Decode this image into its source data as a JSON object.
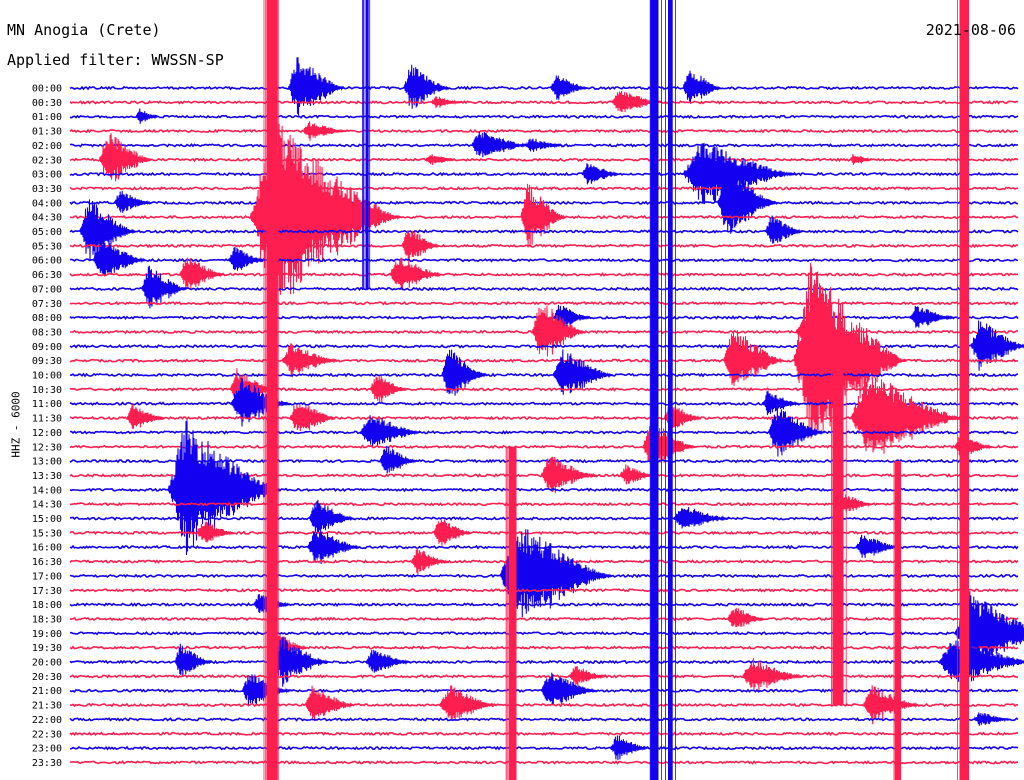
{
  "header": {
    "station": "MN Anogia (Crete)",
    "filter": "Applied filter: WWSSN-SP",
    "date": "2021-08-06"
  },
  "axis": {
    "component": "HHZ - 6000"
  },
  "colors": {
    "even_rows": "#1400f0",
    "odd_rows": "#ff1e50",
    "background": "#ffffff",
    "text": "#000000"
  },
  "chart_data": {
    "type": "line",
    "title": "MN Anogia (Crete)",
    "subtitle": "Applied filter: WWSSN-SP",
    "date": "2021-08-06",
    "ylabel": "HHZ - 6000",
    "x_unit": "minutes within each 30-minute row",
    "xlim": [
      0,
      30
    ],
    "row_labels": [
      "00:00",
      "00:30",
      "01:00",
      "01:30",
      "02:00",
      "02:30",
      "03:00",
      "03:30",
      "04:00",
      "04:30",
      "05:00",
      "05:30",
      "06:00",
      "06:30",
      "07:00",
      "07:30",
      "08:00",
      "08:30",
      "09:00",
      "09:30",
      "10:00",
      "10:30",
      "11:00",
      "11:30",
      "12:00",
      "12:30",
      "13:00",
      "13:30",
      "14:00",
      "14:30",
      "15:00",
      "15:30",
      "16:00",
      "16:30",
      "17:00",
      "17:30",
      "18:00",
      "18:30",
      "19:00",
      "19:30",
      "20:00",
      "20:30",
      "21:00",
      "21:30",
      "22:00",
      "22:30",
      "23:00",
      "23:30"
    ],
    "series_colors": [
      "#1400f0",
      "#ff1e50"
    ],
    "note_amp_units": "relative amplitude (1 = one row spacing)",
    "events": [
      {
        "row": 0,
        "minute": 7.2,
        "amp": 2.5,
        "dur": 1.5
      },
      {
        "row": 0,
        "minute": 10.8,
        "amp": 1.8,
        "dur": 1.2
      },
      {
        "row": 0,
        "minute": 15.4,
        "amp": 1.0,
        "dur": 1.0
      },
      {
        "row": 0,
        "minute": 19.6,
        "amp": 1.6,
        "dur": 1.0
      },
      {
        "row": 1,
        "minute": 17.4,
        "amp": 1.0,
        "dur": 1.3
      },
      {
        "row": 1,
        "minute": 11.6,
        "amp": 0.5,
        "dur": 0.8
      },
      {
        "row": 2,
        "minute": 2.2,
        "amp": 0.6,
        "dur": 0.6
      },
      {
        "row": 3,
        "minute": 7.6,
        "amp": 0.7,
        "dur": 1.2
      },
      {
        "row": 4,
        "minute": 13.0,
        "amp": 1.2,
        "dur": 1.5
      },
      {
        "row": 4,
        "minute": 14.6,
        "amp": 0.6,
        "dur": 1.0
      },
      {
        "row": 5,
        "minute": 1.2,
        "amp": 2.2,
        "dur": 1.4
      },
      {
        "row": 5,
        "minute": 11.4,
        "amp": 0.5,
        "dur": 0.8
      },
      {
        "row": 5,
        "minute": 24.8,
        "amp": 0.5,
        "dur": 0.6
      },
      {
        "row": 6,
        "minute": 20.0,
        "amp": 2.5,
        "dur": 3.0
      },
      {
        "row": 6,
        "minute": 16.4,
        "amp": 1.0,
        "dur": 1.0
      },
      {
        "row": 8,
        "minute": 1.6,
        "amp": 1.0,
        "dur": 1.0
      },
      {
        "row": 8,
        "minute": 20.8,
        "amp": 3.0,
        "dur": 1.6
      },
      {
        "row": 9,
        "minute": 8.6,
        "amp": 1.5,
        "dur": 1.2
      },
      {
        "row": 9,
        "minute": 14.5,
        "amp": 2.5,
        "dur": 1.2
      },
      {
        "row": 9,
        "minute": 6.5,
        "amp": 7.0,
        "dur": 4.0
      },
      {
        "row": 10,
        "minute": 0.6,
        "amp": 2.5,
        "dur": 1.5
      },
      {
        "row": 10,
        "minute": 22.2,
        "amp": 1.2,
        "dur": 1.0
      },
      {
        "row": 11,
        "minute": 10.7,
        "amp": 1.5,
        "dur": 1.0
      },
      {
        "row": 12,
        "minute": 1.0,
        "amp": 1.6,
        "dur": 1.4
      },
      {
        "row": 12,
        "minute": 5.2,
        "amp": 1.0,
        "dur": 1.0
      },
      {
        "row": 13,
        "minute": 3.7,
        "amp": 1.4,
        "dur": 1.2
      },
      {
        "row": 13,
        "minute": 10.4,
        "amp": 1.5,
        "dur": 1.4
      },
      {
        "row": 14,
        "minute": 2.5,
        "amp": 1.8,
        "dur": 1.2
      },
      {
        "row": 16,
        "minute": 15.5,
        "amp": 1.0,
        "dur": 1.0
      },
      {
        "row": 16,
        "minute": 26.8,
        "amp": 1.0,
        "dur": 1.2
      },
      {
        "row": 17,
        "minute": 14.9,
        "amp": 2.5,
        "dur": 1.4
      },
      {
        "row": 17,
        "minute": 23.2,
        "amp": 1.0,
        "dur": 1.2
      },
      {
        "row": 18,
        "minute": 28.8,
        "amp": 2.0,
        "dur": 1.5
      },
      {
        "row": 19,
        "minute": 21.0,
        "amp": 2.5,
        "dur": 1.6
      },
      {
        "row": 19,
        "minute": 7.0,
        "amp": 1.3,
        "dur": 1.5
      },
      {
        "row": 19,
        "minute": 23.5,
        "amp": 7.0,
        "dur": 3.0
      },
      {
        "row": 20,
        "minute": 12.0,
        "amp": 2.0,
        "dur": 1.2
      },
      {
        "row": 20,
        "minute": 15.6,
        "amp": 2.0,
        "dur": 1.6
      },
      {
        "row": 21,
        "minute": 5.3,
        "amp": 1.5,
        "dur": 1.2
      },
      {
        "row": 21,
        "minute": 9.7,
        "amp": 1.2,
        "dur": 1.0
      },
      {
        "row": 22,
        "minute": 5.4,
        "amp": 2.0,
        "dur": 1.6
      },
      {
        "row": 22,
        "minute": 22.1,
        "amp": 1.0,
        "dur": 1.0
      },
      {
        "row": 23,
        "minute": 2.0,
        "amp": 1.0,
        "dur": 1.0
      },
      {
        "row": 23,
        "minute": 7.2,
        "amp": 1.5,
        "dur": 1.2
      },
      {
        "row": 23,
        "minute": 19.0,
        "amp": 1.2,
        "dur": 1.0
      },
      {
        "row": 23,
        "minute": 25.3,
        "amp": 3.5,
        "dur": 3.0
      },
      {
        "row": 24,
        "minute": 9.5,
        "amp": 1.5,
        "dur": 1.6
      },
      {
        "row": 24,
        "minute": 22.4,
        "amp": 2.0,
        "dur": 1.5
      },
      {
        "row": 25,
        "minute": 18.4,
        "amp": 2.0,
        "dur": 1.4
      },
      {
        "row": 25,
        "minute": 28.2,
        "amp": 1.0,
        "dur": 1.0
      },
      {
        "row": 26,
        "minute": 10.0,
        "amp": 1.2,
        "dur": 1.0
      },
      {
        "row": 27,
        "minute": 15.2,
        "amp": 1.5,
        "dur": 1.5
      },
      {
        "row": 27,
        "minute": 17.6,
        "amp": 0.8,
        "dur": 1.0
      },
      {
        "row": 28,
        "minute": 3.7,
        "amp": 5.0,
        "dur": 3.0
      },
      {
        "row": 29,
        "minute": 24.4,
        "amp": 1.0,
        "dur": 1.0
      },
      {
        "row": 30,
        "minute": 7.8,
        "amp": 1.5,
        "dur": 1.2
      },
      {
        "row": 30,
        "minute": 19.4,
        "amp": 1.0,
        "dur": 1.5
      },
      {
        "row": 31,
        "minute": 11.7,
        "amp": 1.2,
        "dur": 1.0
      },
      {
        "row": 31,
        "minute": 4.2,
        "amp": 1.0,
        "dur": 1.0
      },
      {
        "row": 32,
        "minute": 7.8,
        "amp": 1.5,
        "dur": 1.4
      },
      {
        "row": 32,
        "minute": 25.1,
        "amp": 1.0,
        "dur": 1.2
      },
      {
        "row": 33,
        "minute": 11.0,
        "amp": 1.0,
        "dur": 1.0
      },
      {
        "row": 34,
        "minute": 14.2,
        "amp": 4.0,
        "dur": 3.0
      },
      {
        "row": 36,
        "minute": 6.0,
        "amp": 0.8,
        "dur": 1.0
      },
      {
        "row": 37,
        "minute": 21.0,
        "amp": 1.0,
        "dur": 1.0
      },
      {
        "row": 38,
        "minute": 28.5,
        "amp": 3.0,
        "dur": 2.5
      },
      {
        "row": 39,
        "minute": 6.5,
        "amp": 1.2,
        "dur": 1.0
      },
      {
        "row": 40,
        "minute": 3.5,
        "amp": 1.4,
        "dur": 1.0
      },
      {
        "row": 40,
        "minute": 6.7,
        "amp": 2.0,
        "dur": 1.5
      },
      {
        "row": 40,
        "minute": 9.6,
        "amp": 1.0,
        "dur": 1.2
      },
      {
        "row": 40,
        "minute": 28.0,
        "amp": 2.0,
        "dur": 2.5
      },
      {
        "row": 41,
        "minute": 21.6,
        "amp": 1.4,
        "dur": 1.6
      },
      {
        "row": 41,
        "minute": 16.0,
        "amp": 0.8,
        "dur": 1.0
      },
      {
        "row": 42,
        "minute": 5.7,
        "amp": 1.4,
        "dur": 1.3
      },
      {
        "row": 42,
        "minute": 15.2,
        "amp": 1.5,
        "dur": 1.5
      },
      {
        "row": 43,
        "minute": 7.7,
        "amp": 1.5,
        "dur": 1.3
      },
      {
        "row": 43,
        "minute": 12.0,
        "amp": 1.5,
        "dur": 1.5
      },
      {
        "row": 43,
        "minute": 25.4,
        "amp": 1.5,
        "dur": 1.5
      },
      {
        "row": 44,
        "minute": 28.8,
        "amp": 0.6,
        "dur": 1.0
      },
      {
        "row": 46,
        "minute": 17.3,
        "amp": 1.0,
        "dur": 1.0
      }
    ],
    "spikes": [
      {
        "minute": 6.4,
        "row_from": 0,
        "row_to": 47,
        "width_min": 0.35,
        "colors": "odd"
      },
      {
        "minute": 18.5,
        "row_from": 0,
        "row_to": 47,
        "width_min": 0.25,
        "colors": "even"
      },
      {
        "minute": 19.0,
        "row_from": 0,
        "row_to": 47,
        "width_min": 0.15,
        "colors": "even"
      },
      {
        "minute": 28.3,
        "row_from": 0,
        "row_to": 47,
        "width_min": 0.3,
        "colors": "odd"
      },
      {
        "minute": 9.4,
        "row_from": 0,
        "row_to": 12,
        "width_min": 0.1,
        "colors": "even"
      },
      {
        "minute": 14.0,
        "row_from": 27,
        "row_to": 47,
        "width_min": 0.25,
        "colors": "odd"
      },
      {
        "minute": 24.3,
        "row_from": 19,
        "row_to": 41,
        "width_min": 0.35,
        "colors": "odd"
      },
      {
        "minute": 26.2,
        "row_from": 28,
        "row_to": 47,
        "width_min": 0.2,
        "colors": "odd"
      }
    ]
  }
}
